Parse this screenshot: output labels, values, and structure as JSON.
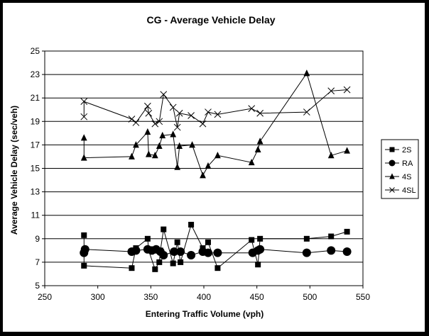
{
  "chart_data": {
    "type": "line",
    "title": "CG - Average Vehicle Delay",
    "xlabel": "Entering Traffic Volume (vph)",
    "ylabel": "Average Vehicle Delay (sec/veh)",
    "xlim": [
      250,
      550
    ],
    "ylim": [
      5,
      25
    ],
    "xticks": [
      250,
      300,
      350,
      400,
      450,
      500,
      550
    ],
    "yticks": [
      5,
      7,
      9,
      11,
      13,
      15,
      17,
      19,
      21,
      23,
      25
    ],
    "grid": "horizontal",
    "legend_position": "right",
    "series": [
      {
        "name": "2S",
        "marker": "square",
        "points": [
          [
            287,
            9.3
          ],
          [
            287,
            6.7
          ],
          [
            332,
            6.5
          ],
          [
            336,
            8.2
          ],
          [
            347,
            9.0
          ],
          [
            348,
            8.0
          ],
          [
            354,
            6.4
          ],
          [
            358,
            7.0
          ],
          [
            359,
            8.0
          ],
          [
            362,
            9.8
          ],
          [
            371,
            6.9
          ],
          [
            375,
            8.7
          ],
          [
            378,
            7.0
          ],
          [
            388,
            10.2
          ],
          [
            399,
            8.2
          ],
          [
            404,
            8.7
          ],
          [
            413,
            6.5
          ],
          [
            445,
            8.9
          ],
          [
            451,
            6.8
          ],
          [
            453,
            9.0
          ],
          [
            497,
            9.0
          ],
          [
            520,
            9.2
          ],
          [
            535,
            9.6
          ]
        ]
      },
      {
        "name": "RA",
        "marker": "circle",
        "points": [
          [
            287,
            7.8
          ],
          [
            288,
            8.1
          ],
          [
            332,
            7.9
          ],
          [
            336,
            8.0
          ],
          [
            347,
            8.1
          ],
          [
            351,
            8.0
          ],
          [
            355,
            8.1
          ],
          [
            359,
            7.9
          ],
          [
            362,
            7.6
          ],
          [
            372,
            7.9
          ],
          [
            378,
            7.9
          ],
          [
            388,
            7.6
          ],
          [
            399,
            7.9
          ],
          [
            404,
            7.8
          ],
          [
            413,
            7.8
          ],
          [
            446,
            7.8
          ],
          [
            451,
            8.0
          ],
          [
            453,
            8.1
          ],
          [
            497,
            7.8
          ],
          [
            520,
            8.0
          ],
          [
            535,
            7.9
          ]
        ]
      },
      {
        "name": "4S",
        "marker": "triangle",
        "points": [
          [
            287,
            17.6
          ],
          [
            287,
            15.9
          ],
          [
            332,
            16.0
          ],
          [
            336,
            17.0
          ],
          [
            347,
            18.1
          ],
          [
            348,
            16.2
          ],
          [
            354,
            16.1
          ],
          [
            358,
            16.9
          ],
          [
            361,
            17.8
          ],
          [
            371,
            17.9
          ],
          [
            375,
            15.1
          ],
          [
            377,
            16.9
          ],
          [
            389,
            17.0
          ],
          [
            399,
            14.4
          ],
          [
            404,
            15.2
          ],
          [
            413,
            16.1
          ],
          [
            445,
            15.5
          ],
          [
            451,
            16.6
          ],
          [
            453,
            17.3
          ],
          [
            497,
            23.1
          ],
          [
            520,
            16.1
          ],
          [
            535,
            16.5
          ]
        ]
      },
      {
        "name": "4SL",
        "marker": "x",
        "points": [
          [
            287,
            19.4
          ],
          [
            287,
            20.7
          ],
          [
            332,
            19.2
          ],
          [
            336,
            18.9
          ],
          [
            347,
            20.3
          ],
          [
            348,
            19.7
          ],
          [
            354,
            18.8
          ],
          [
            358,
            19.0
          ],
          [
            362,
            21.3
          ],
          [
            371,
            20.2
          ],
          [
            375,
            18.5
          ],
          [
            377,
            19.7
          ],
          [
            388,
            19.5
          ],
          [
            399,
            18.8
          ],
          [
            404,
            19.8
          ],
          [
            413,
            19.6
          ],
          [
            445,
            20.1
          ],
          [
            453,
            19.7
          ],
          [
            497,
            19.8
          ],
          [
            520,
            21.6
          ],
          [
            535,
            21.7
          ]
        ]
      }
    ]
  }
}
